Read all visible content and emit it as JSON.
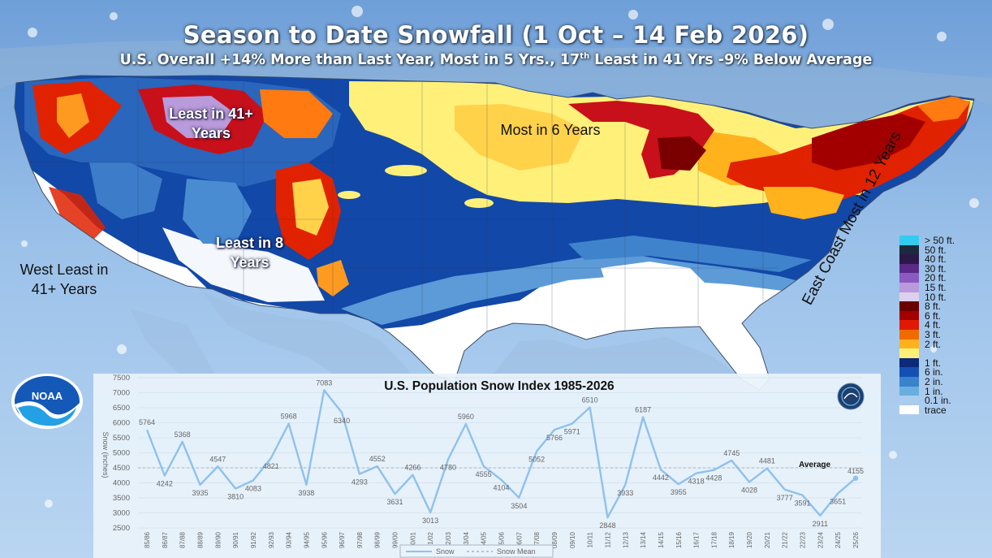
{
  "header": {
    "title": "Season to Date Snowfall (1 Oct – 14 Feb 2026)",
    "subtitle_part1": "U.S. Overall +14% More than Last Year, Most in 5 Yrs., 17",
    "subtitle_sup": "th",
    "subtitle_part2": " Least in 41 Yrs -9% Below Average"
  },
  "map": {
    "annotations": {
      "least_41_line1": "Least in 41+",
      "least_41_line2": "Years",
      "least_8_line1": "Least in 8",
      "least_8_line2": "Years",
      "most_6": "Most in 6 Years",
      "west_line1": "West Least in",
      "west_line2": "41+ Years",
      "east_coast": "East Coast Most in 12 Years"
    },
    "legend": [
      {
        "label": "> 50 ft.",
        "color": "#33ccee"
      },
      {
        "label": "50 ft.",
        "color": "#1c2a3e"
      },
      {
        "label": "40 ft.",
        "color": "#2b1848"
      },
      {
        "label": "30 ft.",
        "color": "#5a2a86"
      },
      {
        "label": "20 ft.",
        "color": "#8a5ac0"
      },
      {
        "label": "15 ft.",
        "color": "#b99ada"
      },
      {
        "label": "10 ft.",
        "color": "#ddd0ee"
      },
      {
        "label": "8 ft.",
        "color": "#6a0000"
      },
      {
        "label": "6 ft.",
        "color": "#a20000"
      },
      {
        "label": "4 ft.",
        "color": "#e01a00"
      },
      {
        "label": "3 ft.",
        "color": "#f06a00"
      },
      {
        "label": "2 ft.",
        "color": "#ffb21c"
      },
      {
        "label": "",
        "color": "#fff07a"
      },
      {
        "label": "1 ft.",
        "color": "#0b2a7a"
      },
      {
        "label": "6 in.",
        "color": "#1450b4"
      },
      {
        "label": "2 in.",
        "color": "#3a82cc"
      },
      {
        "label": "1 in.",
        "color": "#6aaee0"
      },
      {
        "label": "0.1 in.",
        "color": "#a8cdee"
      },
      {
        "label": "trace",
        "color": "#ffffff"
      }
    ],
    "logo_text": "NOAA"
  },
  "chart_data": {
    "type": "line",
    "title": "U.S. Population Snow Index 1985-2026",
    "ylabel": "Snow (inches)",
    "ylim": [
      2500,
      7500
    ],
    "yticks": [
      2500,
      3000,
      3500,
      4000,
      4500,
      5000,
      5500,
      6000,
      6500,
      7000,
      7500
    ],
    "categories": [
      "85/86",
      "86/87",
      "87/88",
      "88/89",
      "89/90",
      "90/91",
      "91/92",
      "92/93",
      "93/94",
      "94/95",
      "95/96",
      "96/97",
      "97/98",
      "98/99",
      "99/00",
      "00/01",
      "01/02",
      "02/03",
      "03/04",
      "04/05",
      "05/06",
      "06/07",
      "07/08",
      "08/09",
      "09/10",
      "10/11",
      "11/12",
      "12/13",
      "13/14",
      "14/15",
      "15/16",
      "16/17",
      "17/18",
      "18/19",
      "19/20",
      "20/21",
      "21/22",
      "22/23",
      "23/24",
      "24/25",
      "25/26"
    ],
    "series": [
      {
        "name": "Snow",
        "color": "#8fc1ec",
        "values": [
          5764,
          4242,
          5368,
          3935,
          4547,
          3810,
          4083,
          4821,
          5968,
          3938,
          7083,
          6340,
          4293,
          4552,
          3631,
          4266,
          3013,
          4780,
          5960,
          4555,
          4104,
          3504,
          5052,
          5766,
          5971,
          6510,
          2848,
          3933,
          6187,
          4442,
          3955,
          4318,
          4428,
          4745,
          4028,
          4481,
          3777,
          3591,
          2911,
          3651,
          4155
        ]
      },
      {
        "name": "Snow Mean",
        "color": "#a8b2bc",
        "value": 4500
      }
    ],
    "average_label": "Average"
  }
}
